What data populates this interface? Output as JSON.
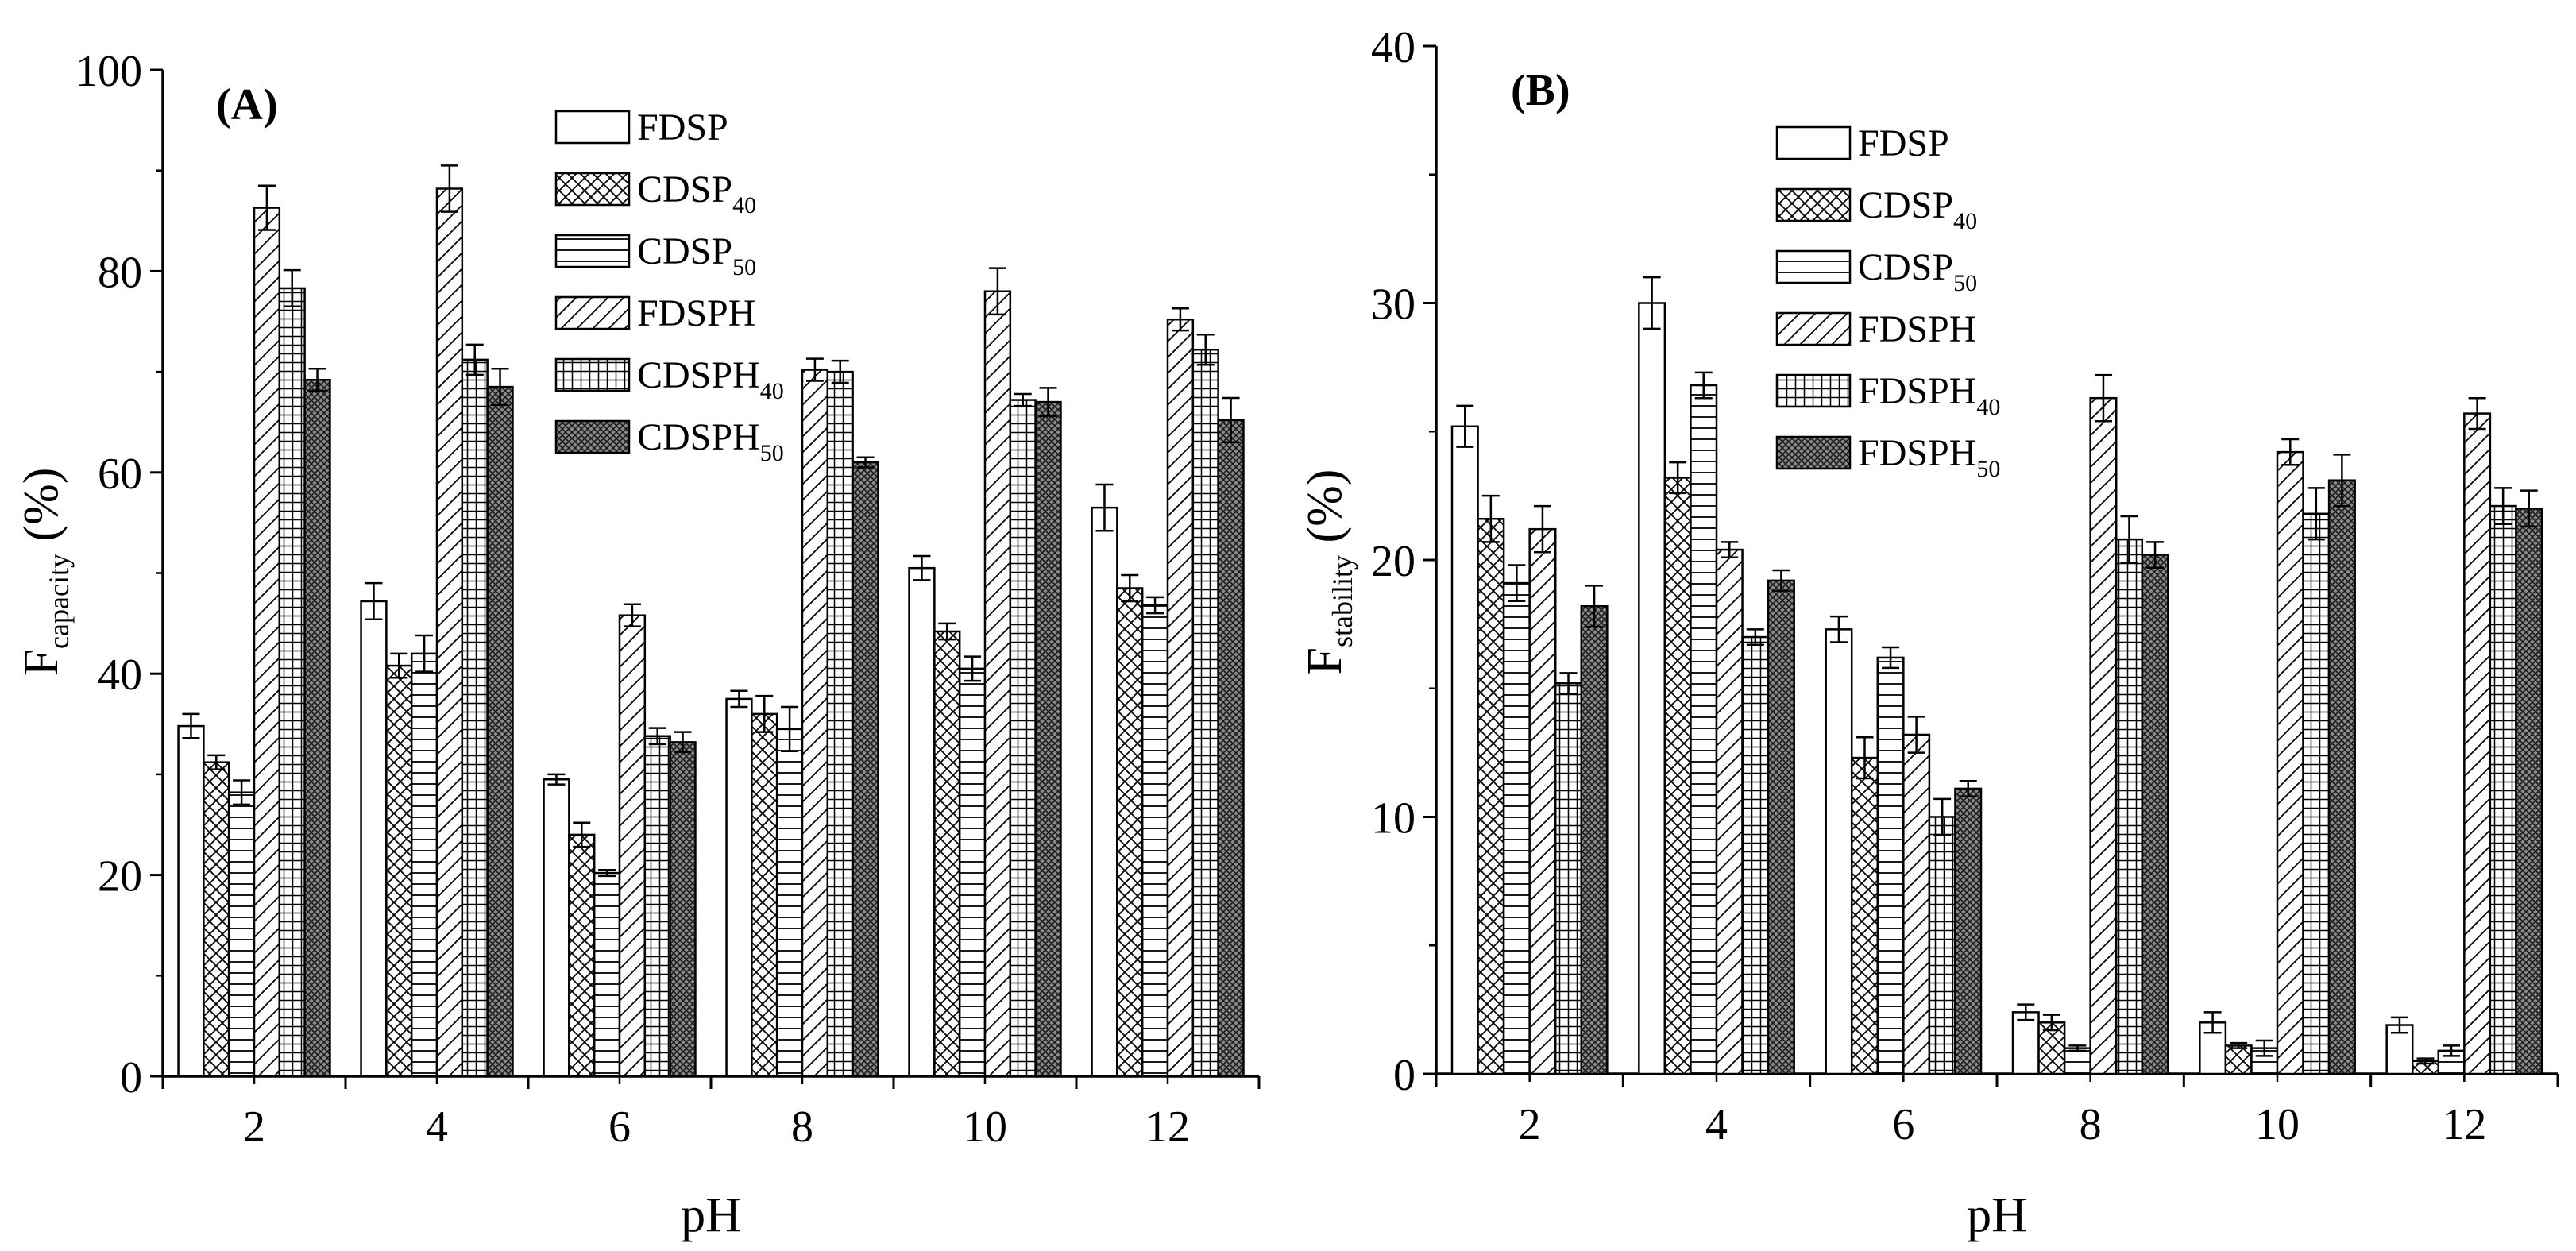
{
  "chart_data": [
    {
      "type": "bar",
      "panel_label": "(A)",
      "xlabel": "pH",
      "ylabel_main": "F",
      "ylabel_sub": "capacity",
      "ylabel_unit": " (%)",
      "ylim": [
        0,
        100
      ],
      "yticks": [
        0,
        20,
        40,
        60,
        80,
        100
      ],
      "categories": [
        "2",
        "4",
        "6",
        "8",
        "10",
        "12"
      ],
      "legend_position": "top-center",
      "series": [
        {
          "name": "FDSP",
          "name_main": "FDSP",
          "name_sub": "",
          "pattern": "blank",
          "values": [
            34.8,
            47.2,
            29.5,
            37.5,
            50.5,
            56.5
          ],
          "errors": [
            1.2,
            1.8,
            0.5,
            0.8,
            1.2,
            2.3
          ]
        },
        {
          "name": "CDSP40",
          "name_main": "CDSP",
          "name_sub": "40",
          "pattern": "cross",
          "values": [
            31.2,
            40.8,
            24.0,
            36.0,
            44.2,
            48.5
          ],
          "errors": [
            0.7,
            1.2,
            1.2,
            1.8,
            0.8,
            1.3
          ]
        },
        {
          "name": "CDSP50",
          "name_main": "CDSP",
          "name_sub": "50",
          "pattern": "hline",
          "values": [
            28.2,
            42.0,
            20.2,
            34.5,
            40.5,
            46.8
          ],
          "errors": [
            1.2,
            1.8,
            0.3,
            2.2,
            1.2,
            0.8
          ]
        },
        {
          "name": "FDSPH",
          "name_main": "FDSPH",
          "name_sub": "",
          "pattern": "diag",
          "values": [
            86.3,
            88.2,
            45.8,
            70.2,
            78.0,
            75.2
          ],
          "errors": [
            2.2,
            2.3,
            1.1,
            1.1,
            2.3,
            1.1
          ]
        },
        {
          "name": "CDSPH40",
          "name_main": "CDSPH",
          "name_sub": "40",
          "pattern": "grid",
          "values": [
            78.3,
            71.2,
            33.8,
            70.0,
            67.2,
            72.2
          ],
          "errors": [
            1.8,
            1.5,
            0.8,
            1.1,
            0.6,
            1.5
          ]
        },
        {
          "name": "CDSPH50",
          "name_main": "CDSPH",
          "name_sub": "50",
          "pattern": "dense",
          "values": [
            69.2,
            68.5,
            33.2,
            61.0,
            67.0,
            65.2
          ],
          "errors": [
            1.1,
            1.8,
            1.0,
            0.5,
            1.4,
            2.2
          ]
        }
      ]
    },
    {
      "type": "bar",
      "panel_label": "(B)",
      "xlabel": "pH",
      "ylabel_main": "F",
      "ylabel_sub": "stability",
      "ylabel_unit": " (%)",
      "ylim": [
        0,
        40
      ],
      "yticks": [
        0,
        10,
        20,
        30,
        40
      ],
      "categories": [
        "2",
        "4",
        "6",
        "8",
        "10",
        "12"
      ],
      "legend_position": "top-center",
      "series": [
        {
          "name": "FDSP",
          "name_main": "FDSP",
          "name_sub": "",
          "pattern": "blank",
          "values": [
            25.2,
            30.0,
            17.3,
            2.4,
            2.0,
            1.9
          ],
          "errors": [
            0.8,
            1.0,
            0.5,
            0.3,
            0.4,
            0.3
          ]
        },
        {
          "name": "CDSP40",
          "name_main": "CDSP",
          "name_sub": "40",
          "pattern": "cross",
          "values": [
            21.6,
            23.2,
            12.3,
            2.0,
            1.1,
            0.5
          ],
          "errors": [
            0.9,
            0.6,
            0.8,
            0.3,
            0.1,
            0.1
          ]
        },
        {
          "name": "CDSP50",
          "name_main": "CDSP",
          "name_sub": "50",
          "pattern": "hline",
          "values": [
            19.1,
            26.8,
            16.2,
            1.0,
            1.0,
            0.9
          ],
          "errors": [
            0.7,
            0.5,
            0.4,
            0.1,
            0.3,
            0.2
          ]
        },
        {
          "name": "FDSPH",
          "name_main": "FDSPH",
          "name_sub": "",
          "pattern": "diag",
          "values": [
            21.2,
            20.4,
            13.2,
            26.3,
            24.2,
            25.7
          ],
          "errors": [
            0.9,
            0.3,
            0.7,
            0.9,
            0.5,
            0.6
          ]
        },
        {
          "name": "FDSPH40",
          "name_main": "FDSPH",
          "name_sub": "40",
          "pattern": "grid",
          "values": [
            15.2,
            17.0,
            10.0,
            20.8,
            21.8,
            22.1
          ],
          "errors": [
            0.4,
            0.3,
            0.7,
            0.9,
            1.0,
            0.7
          ]
        },
        {
          "name": "FDSPH50",
          "name_main": "FDSPH",
          "name_sub": "50",
          "pattern": "dense",
          "values": [
            18.2,
            19.2,
            11.1,
            20.2,
            23.1,
            22.0
          ],
          "errors": [
            0.8,
            0.4,
            0.3,
            0.5,
            1.0,
            0.7
          ]
        }
      ]
    }
  ]
}
